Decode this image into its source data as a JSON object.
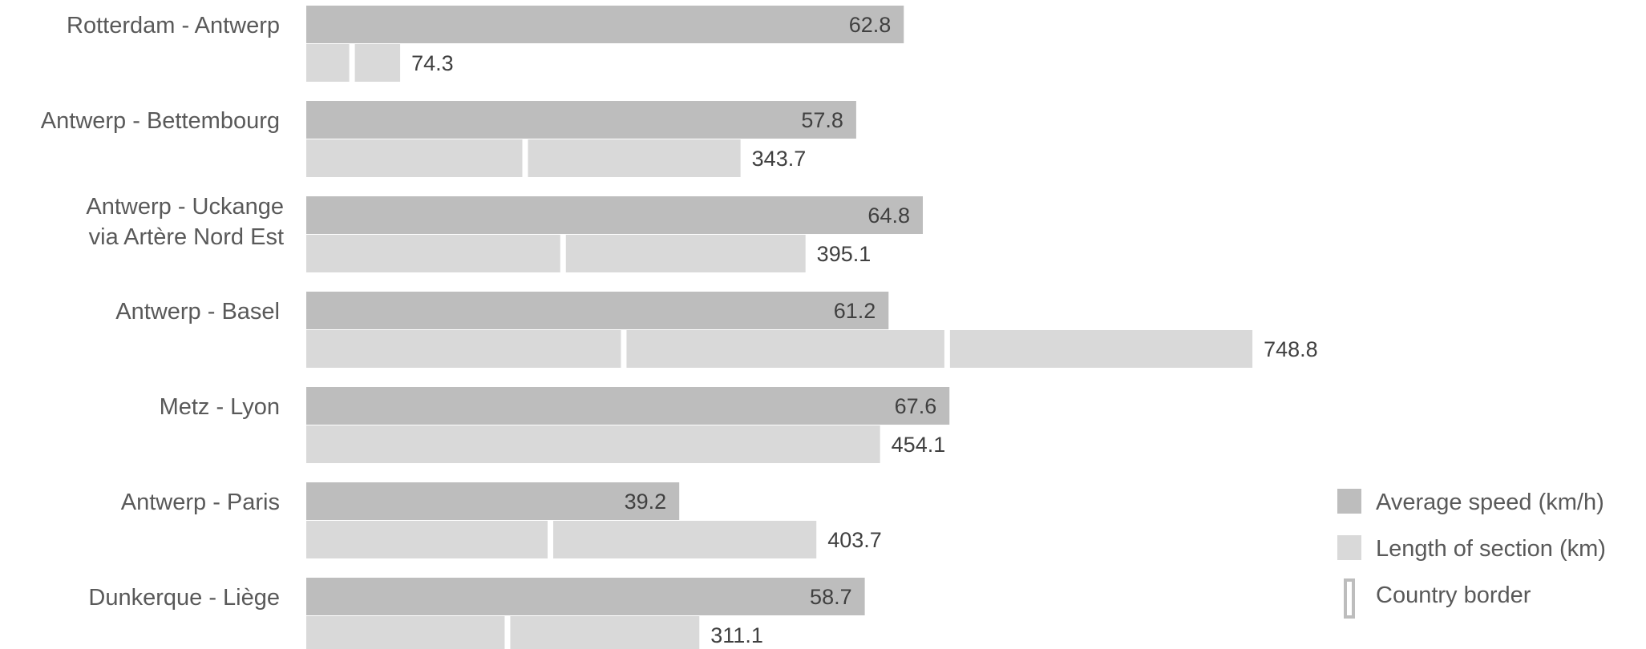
{
  "chart_data": {
    "type": "bar",
    "orientation": "horizontal",
    "categories": [
      [
        "Rotterdam - Antwerp"
      ],
      [
        "Antwerp - Bettembourg"
      ],
      [
        "Antwerp - Uckange",
        "via Artère Nord Est"
      ],
      [
        "Antwerp - Basel"
      ],
      [
        "Metz - Lyon"
      ],
      [
        "Antwerp - Paris"
      ],
      [
        "Dunkerque - Liège"
      ]
    ],
    "series": [
      {
        "name": "Average speed (km/h)",
        "color": "#bdbdbd",
        "values": [
          62.8,
          57.8,
          64.8,
          61.2,
          67.6,
          39.2,
          58.7
        ]
      },
      {
        "name": "Length of section (km)",
        "color": "#d9d9d9",
        "values": [
          74.3,
          343.7,
          395.1,
          748.8,
          454.1,
          403.7,
          311.1
        ]
      }
    ],
    "country_border_km": [
      [
        34.0
      ],
      [
        171.0
      ],
      [
        201.0
      ],
      [
        249.0,
        505.0
      ],
      [],
      [
        191.0
      ],
      [
        157.0
      ]
    ],
    "legend": [
      {
        "label": "Average speed (km/h)",
        "marker": "filled",
        "color": "#bdbdbd"
      },
      {
        "label": "Length of section (km)",
        "marker": "filled",
        "color": "#d9d9d9"
      },
      {
        "label": "Country border",
        "marker": "outline",
        "color": "#bdbdbd"
      }
    ],
    "legend_position": "bottom-right",
    "grid": false,
    "xlim": [
      0,
      1000
    ]
  }
}
